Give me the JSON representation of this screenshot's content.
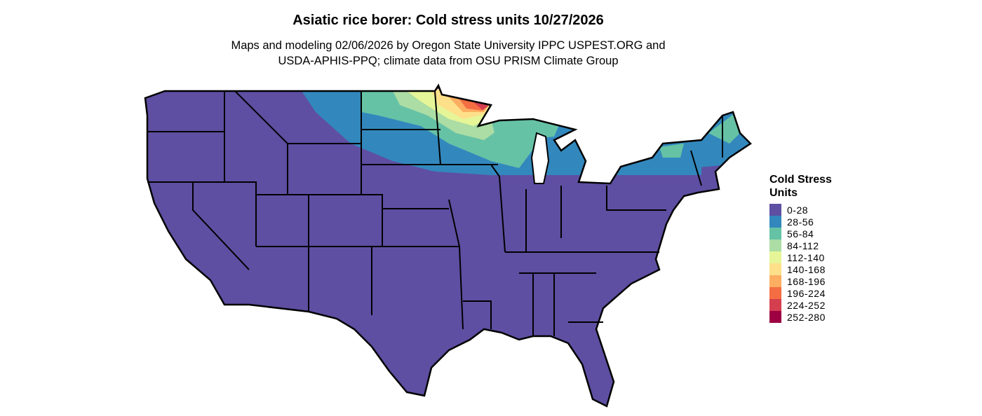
{
  "title": "Asiatic rice borer: Cold stress units 10/27/2026",
  "subtitle_line1": "Maps and modeling 02/06/2026 by Oregon State University IPPC USPEST.ORG and",
  "subtitle_line2": "USDA-APHIS-PPQ; climate data from OSU PRISM Climate Group",
  "legend": {
    "title_line1": "Cold Stress",
    "title_line2": "Units",
    "items": [
      {
        "label": "0-28",
        "color": "#5E4FA2"
      },
      {
        "label": "28-56",
        "color": "#3288BD"
      },
      {
        "label": "56-84",
        "color": "#66C2A5"
      },
      {
        "label": "84-112",
        "color": "#ABDDA4"
      },
      {
        "label": "112-140",
        "color": "#E6F598"
      },
      {
        "label": "140-168",
        "color": "#FEE08B"
      },
      {
        "label": "168-196",
        "color": "#FDAE61"
      },
      {
        "label": "196-224",
        "color": "#F46D43"
      },
      {
        "label": "224-252",
        "color": "#D53E4F"
      },
      {
        "label": "252-280",
        "color": "#9E0142"
      }
    ]
  }
}
